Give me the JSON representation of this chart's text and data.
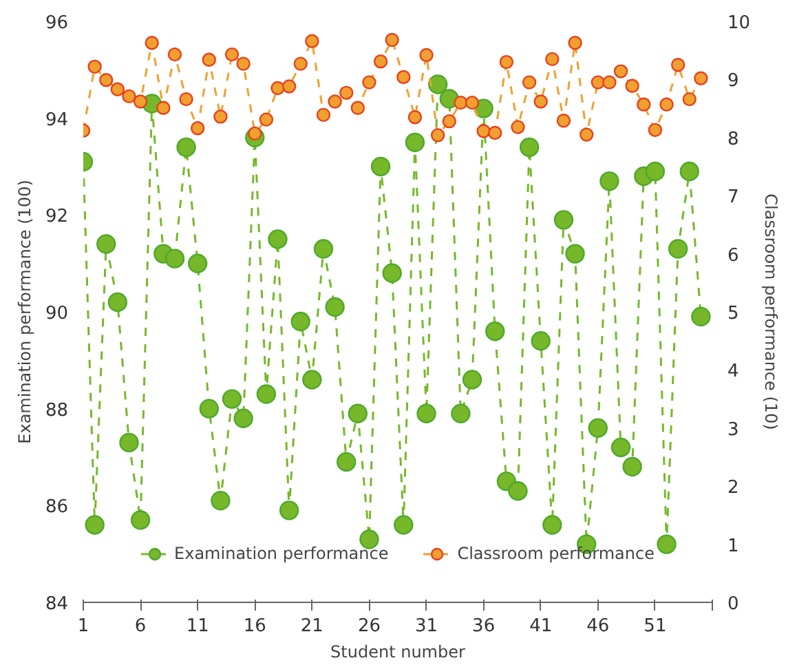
{
  "chart_data": {
    "type": "line",
    "xlabel": "Student number",
    "ylabel": "Examination performance (100)",
    "y2label": "Classroom performance (10)",
    "x": [
      1,
      2,
      3,
      4,
      5,
      6,
      7,
      8,
      9,
      10,
      11,
      12,
      13,
      14,
      15,
      16,
      17,
      18,
      19,
      20,
      21,
      22,
      23,
      24,
      25,
      26,
      27,
      28,
      29,
      30,
      31,
      32,
      33,
      34,
      35,
      36,
      37,
      38,
      39,
      40,
      41,
      42,
      43,
      44,
      45,
      46,
      47,
      48,
      49,
      50,
      51,
      52,
      53,
      54,
      55
    ],
    "xlim": [
      1,
      56
    ],
    "xticks": [
      1,
      6,
      11,
      16,
      21,
      26,
      31,
      36,
      41,
      46,
      51,
      {
        "value": 56,
        "label": null
      }
    ],
    "ylim": [
      84,
      96
    ],
    "yticks": [
      84,
      86,
      88,
      90,
      92,
      94,
      96
    ],
    "y2lim": [
      0,
      10
    ],
    "y2ticks": [
      0,
      1,
      2,
      3,
      4,
      5,
      6,
      7,
      8,
      9,
      10
    ],
    "grid": false,
    "legend": "bottom",
    "marker": "circle",
    "line_style": "dashed",
    "series": [
      {
        "name": "Examination performance",
        "color": "#76b82a",
        "values": [
          93.1,
          85.6,
          91.4,
          90.2,
          87.3,
          85.7,
          94.3,
          91.2,
          91.1,
          93.4,
          91.0,
          88.0,
          86.1,
          88.2,
          87.8,
          93.6,
          88.3,
          91.5,
          85.9,
          89.8,
          88.6,
          91.3,
          90.1,
          86.9,
          87.9,
          85.3,
          93.0,
          90.8,
          85.6,
          93.5,
          87.9,
          94.7,
          94.4,
          87.9,
          88.6,
          94.2,
          89.6,
          86.5,
          86.3,
          93.4,
          89.4,
          85.6,
          91.9,
          91.2,
          85.2,
          87.6,
          92.7,
          87.2,
          86.8,
          92.8,
          92.9,
          85.2,
          91.3,
          92.9,
          89.9
        ]
      },
      {
        "name": "Classroom performance",
        "color": "#f0a030",
        "axis": "y2",
        "values": [
          8.12,
          9.22,
          8.99,
          8.83,
          8.71,
          8.62,
          9.63,
          8.51,
          9.43,
          8.66,
          8.16,
          9.34,
          8.36,
          9.43,
          9.27,
          8.07,
          8.31,
          8.85,
          8.88,
          9.27,
          9.66,
          8.39,
          8.62,
          8.77,
          8.51,
          8.95,
          9.31,
          9.68,
          9.04,
          8.35,
          9.42,
          8.04,
          8.28,
          8.6,
          8.6,
          8.11,
          8.08,
          9.3,
          8.18,
          8.95,
          8.62,
          9.35,
          8.29,
          9.63,
          8.05,
          8.95,
          8.95,
          9.14,
          8.89,
          8.57,
          8.13,
          8.57,
          9.25,
          8.66,
          9.02
        ]
      }
    ]
  }
}
